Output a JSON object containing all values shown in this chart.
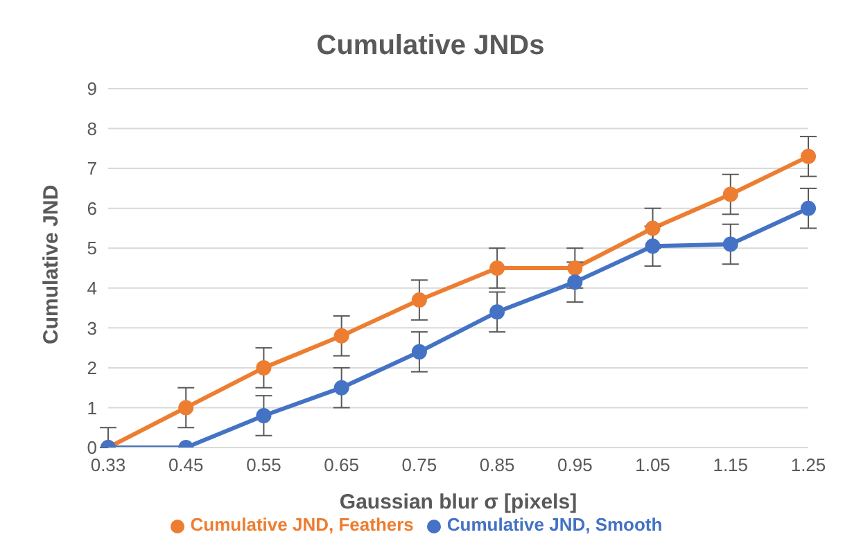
{
  "chart_data": {
    "type": "line",
    "title": "Cumulative JNDs",
    "xlabel": "Gaussian blur σ [pixels]",
    "ylabel": "Cumulative JND",
    "categories": [
      "0.33",
      "0.45",
      "0.55",
      "0.65",
      "0.75",
      "0.85",
      "0.95",
      "1.05",
      "1.15",
      "1.25"
    ],
    "series": [
      {
        "name": "Cumulative JND, Feathers",
        "color": "#ed7d31",
        "values": [
          0,
          1,
          2,
          2.8,
          3.7,
          4.5,
          4.5,
          5.5,
          6.35,
          7.3
        ],
        "errors": [
          [
            0,
            0.5
          ],
          0.5,
          0.5,
          0.5,
          0.5,
          0.5,
          0.5,
          0.5,
          0.5,
          0.5
        ]
      },
      {
        "name": "Cumulative JND, Smooth",
        "color": "#4472c4",
        "values": [
          0,
          0,
          0.8,
          1.5,
          2.4,
          3.4,
          4.15,
          5.05,
          5.1,
          6
        ],
        "errors": [
          null,
          null,
          0.5,
          0.5,
          0.5,
          0.5,
          0.5,
          0.5,
          0.5,
          0.5
        ]
      }
    ],
    "ylim": [
      0,
      9
    ],
    "yticks": [
      0,
      1,
      2,
      3,
      4,
      5,
      6,
      7,
      8,
      9
    ],
    "grid": "y",
    "legend": "bottom",
    "marker": "circle",
    "line_style": "solid"
  }
}
